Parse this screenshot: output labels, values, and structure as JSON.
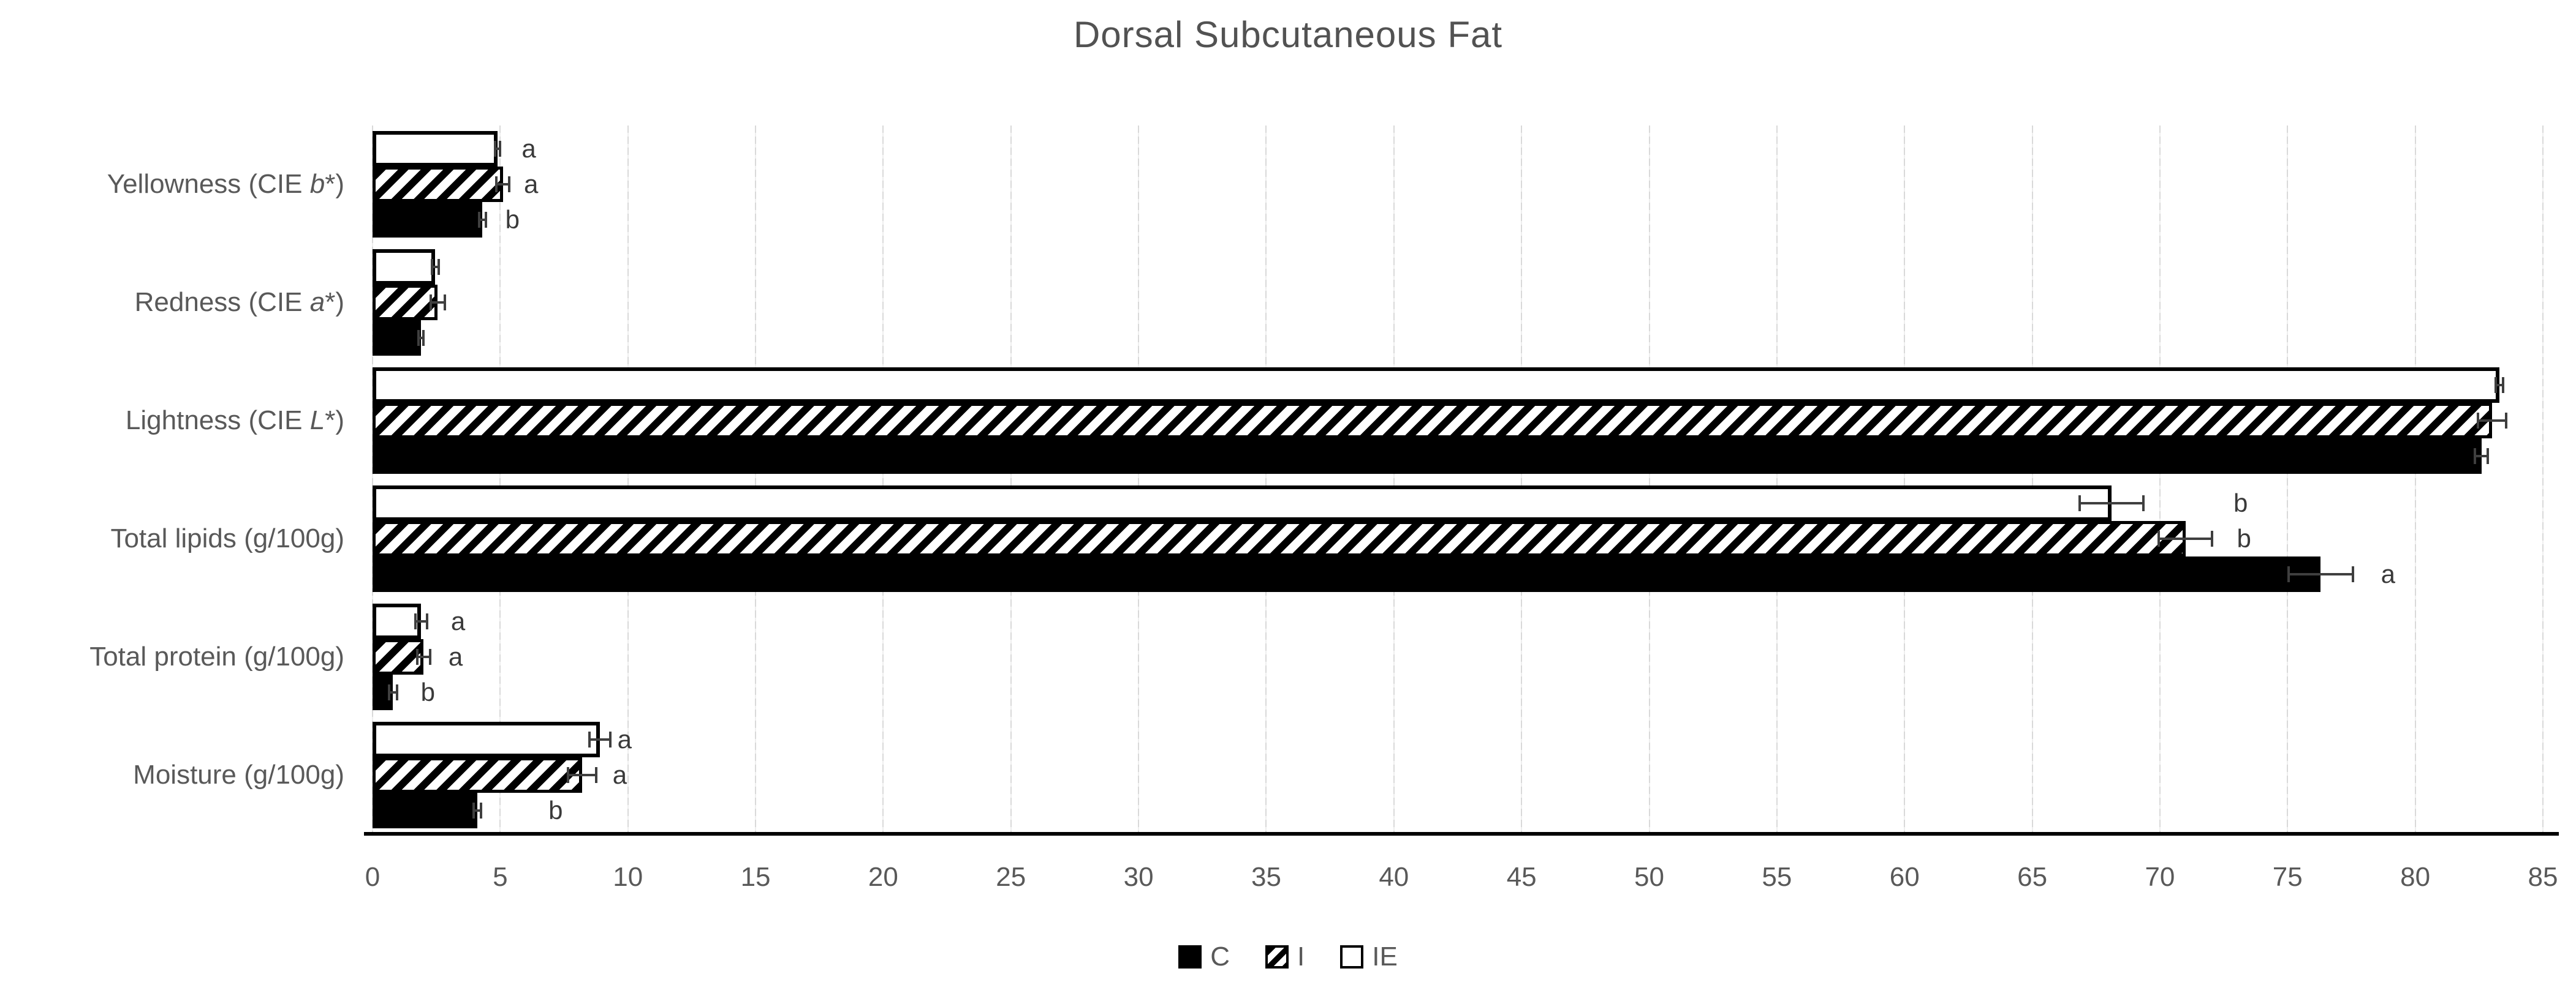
{
  "title": "Dorsal Subcutaneous Fat",
  "colors": {
    "text": "#595959",
    "title_text": "#525252",
    "bar_fill_black": "#000000",
    "bar_outline": "#000000",
    "bar_fill_white": "#ffffff",
    "gridline": "#d9d9d9",
    "axis_line": "#000000",
    "error_bar": "#3f3f3f",
    "letter_text": "#3a3a3a"
  },
  "legend": [
    {
      "label": "C",
      "swatch": "solid-black"
    },
    {
      "label": "I",
      "swatch": "hatched"
    },
    {
      "label": "IE",
      "swatch": "white"
    }
  ],
  "chart_data": {
    "type": "bar",
    "orientation": "horizontal",
    "title": "Dorsal Subcutaneous Fat",
    "xlabel": "",
    "ylabel": "",
    "xlim": [
      0,
      85
    ],
    "xtick_step": 5,
    "xticks": [
      0,
      5,
      10,
      15,
      20,
      25,
      30,
      35,
      40,
      45,
      50,
      55,
      60,
      65,
      70,
      75,
      80,
      85
    ],
    "grid": "vertical",
    "legend_position": "bottom",
    "bar_order_top_to_bottom": [
      "IE",
      "I",
      "C"
    ],
    "categories": [
      "Yellowness (CIE b*)",
      "Redness (CIE a*)",
      "Lightness (CIE L*)",
      "Total lipids (g/100g)",
      "Total protein (g/100g)",
      "Moisture (g/100g)"
    ],
    "category_parts": [
      {
        "prefix": "Yellowness (CIE ",
        "italic": "b",
        "suffix": "*)"
      },
      {
        "prefix": "Redness (CIE ",
        "italic": "a",
        "suffix": "*)"
      },
      {
        "prefix": "Lightness (CIE ",
        "italic": "L",
        "suffix": "*)"
      },
      {
        "prefix": "Total lipids (g/100g)",
        "italic": "",
        "suffix": ""
      },
      {
        "prefix": "Total protein (g/100g)",
        "italic": "",
        "suffix": ""
      },
      {
        "prefix": "Moisture (g/100g)",
        "italic": "",
        "suffix": ""
      }
    ],
    "series": [
      {
        "name": "C",
        "style": "solid-black",
        "values": [
          4.3,
          1.9,
          82.6,
          76.3,
          0.8,
          4.1
        ],
        "errors": [
          0.18,
          0.15,
          0.3,
          1.3,
          0.2,
          0.2
        ],
        "letters": [
          "b",
          "",
          "",
          "a",
          "b",
          "b"
        ],
        "letter_dx": [
          30,
          0,
          0,
          44,
          37,
          108
        ]
      },
      {
        "name": "I",
        "style": "hatched",
        "values": [
          5.1,
          2.55,
          83.0,
          71.0,
          2.0,
          8.2
        ],
        "errors": [
          0.3,
          0.32,
          0.6,
          1.1,
          0.3,
          0.6
        ],
        "letters": [
          "a",
          "",
          "",
          "b",
          "a",
          "a"
        ],
        "letter_dx": [
          22,
          0,
          0,
          38,
          28,
          25
        ]
      },
      {
        "name": "IE",
        "style": "white",
        "values": [
          4.9,
          2.45,
          83.3,
          68.1,
          1.9,
          8.9
        ],
        "errors": [
          0.15,
          0.18,
          0.2,
          1.3,
          0.28,
          0.45
        ],
        "letters": [
          "a",
          "",
          "",
          "b",
          "a",
          "a"
        ],
        "letter_dx": [
          33,
          0,
          0,
          145,
          37,
          10
        ]
      }
    ]
  }
}
